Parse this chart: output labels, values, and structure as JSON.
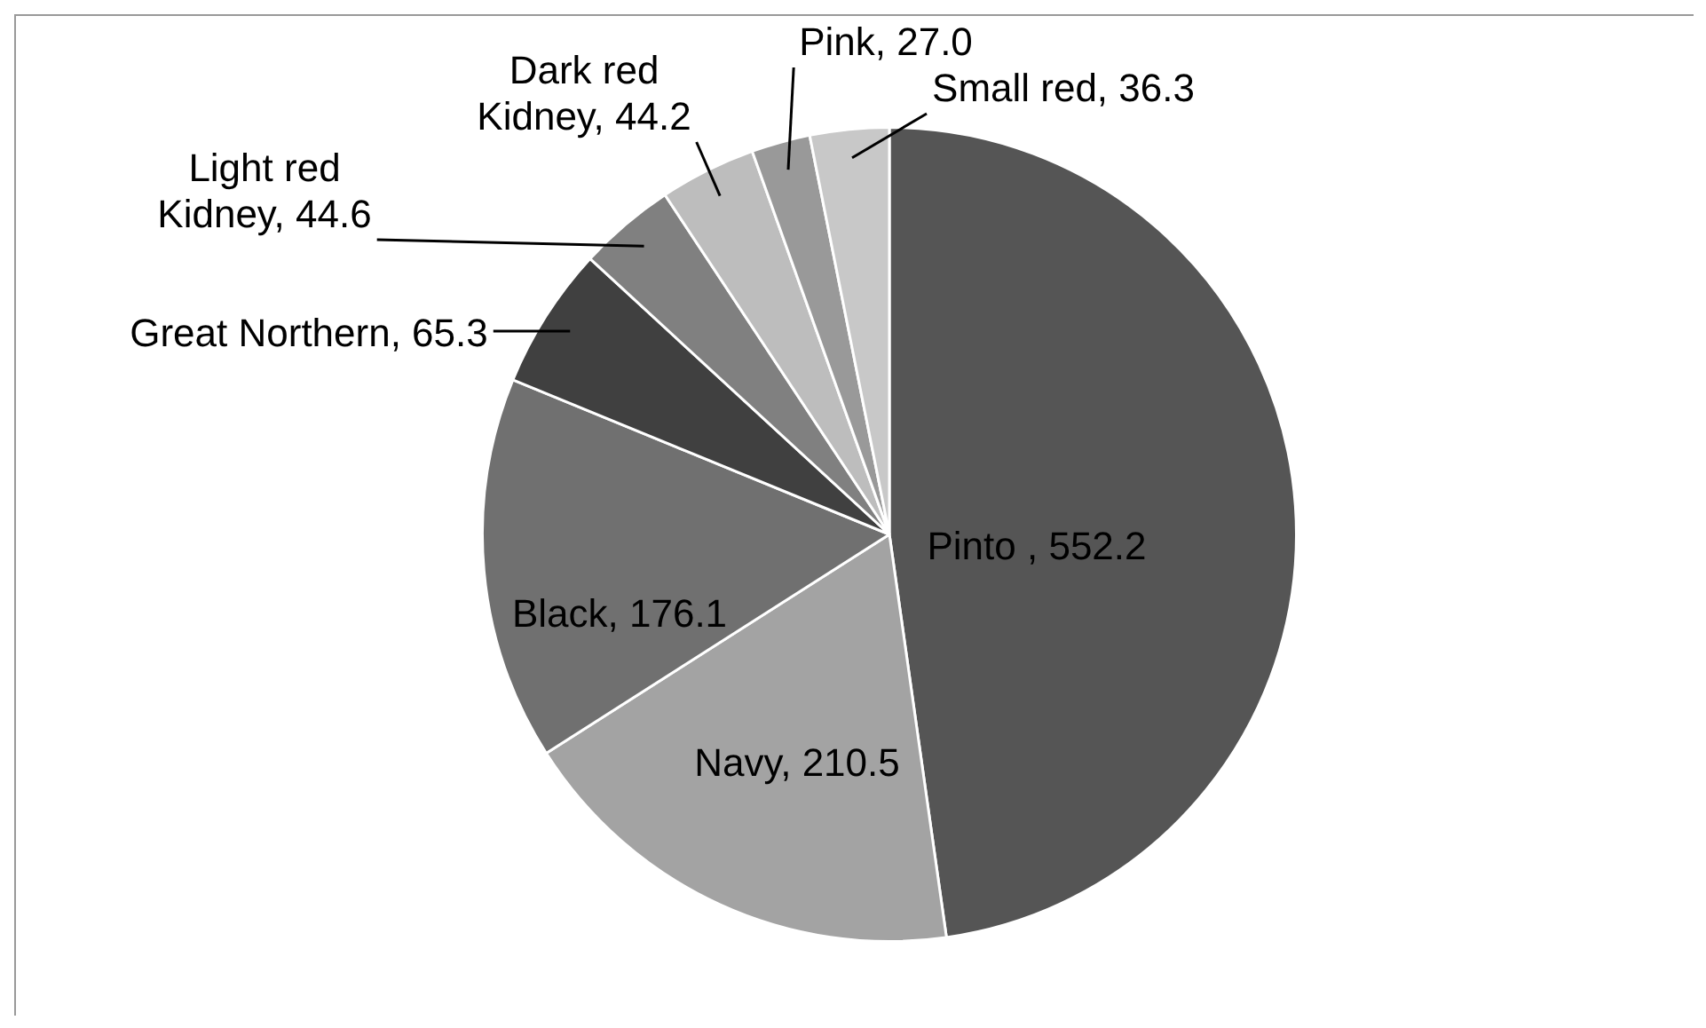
{
  "chart_data": {
    "type": "pie",
    "categories": [
      "Pinto ",
      "Navy",
      "Black",
      "Great Northern",
      "Light red Kidney",
      "Dark red Kidney",
      "Pink",
      "Small red"
    ],
    "values": [
      552.2,
      210.5,
      176.1,
      65.3,
      44.6,
      44.2,
      27.0,
      36.3
    ],
    "value_labels": [
      "552.2",
      "210.5",
      "176.1",
      "65.3",
      "44.6",
      "44.2",
      "27.0",
      "36.3"
    ],
    "colors": [
      "#555555",
      "#a3a3a3",
      "#707070",
      "#404040",
      "#808080",
      "#bdbdbd",
      "#999999",
      "#c8c8c8"
    ],
    "legend": false
  }
}
